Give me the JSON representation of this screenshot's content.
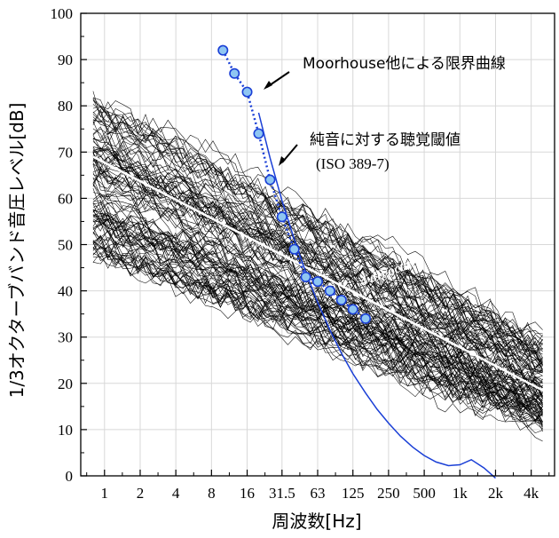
{
  "chart_data": {
    "type": "line",
    "xlabel": "周波数[Hz]",
    "ylabel": "1/3オクターブバンド音圧レベル[dB]",
    "x_scale": "log",
    "xlim": [
      0.63,
      6300
    ],
    "ylim": [
      0,
      100
    ],
    "grid": true,
    "y_ticks": [
      0,
      10,
      20,
      30,
      40,
      50,
      60,
      70,
      80,
      90,
      100
    ],
    "x_ticks": [
      {
        "value": 1,
        "label": "1"
      },
      {
        "value": 2,
        "label": "2"
      },
      {
        "value": 4,
        "label": "4"
      },
      {
        "value": 8,
        "label": "8"
      },
      {
        "value": 16,
        "label": "16"
      },
      {
        "value": 31.5,
        "label": "31.5"
      },
      {
        "value": 63,
        "label": "63"
      },
      {
        "value": 125,
        "label": "125"
      },
      {
        "value": 250,
        "label": "250"
      },
      {
        "value": 500,
        "label": "500"
      },
      {
        "value": 1000,
        "label": "1k"
      },
      {
        "value": 2000,
        "label": "2k"
      },
      {
        "value": 4000,
        "label": "4k"
      }
    ],
    "series": [
      {
        "name": "Moorhouse他による限界曲線",
        "style": "dotted-markers",
        "color": "#1a3fd6",
        "x": [
          10,
          12.5,
          16,
          20,
          25,
          31.5,
          40,
          50,
          63,
          80,
          100,
          125,
          160
        ],
        "y": [
          92,
          87,
          83,
          74,
          64,
          56,
          49,
          43,
          42,
          40,
          38,
          36,
          34
        ]
      },
      {
        "name": "純音に対する聴覚閾値",
        "note": "(ISO 389-7)",
        "style": "solid",
        "color": "#1a3fd6",
        "x": [
          20,
          25,
          31.5,
          40,
          50,
          63,
          80,
          100,
          125,
          160,
          200,
          250,
          315,
          400,
          500,
          630,
          800,
          1000,
          1250,
          1600,
          2000
        ],
        "y": [
          78.5,
          68.7,
          59.5,
          51.1,
          44.0,
          37.5,
          31.5,
          26.5,
          22.1,
          17.9,
          14.4,
          11.4,
          8.6,
          6.2,
          4.4,
          3.0,
          2.2,
          2.4,
          3.5,
          1.7,
          -0.5
        ]
      },
      {
        "name": "4 dB/octave",
        "style": "trend",
        "color": "#ffffff",
        "x": [
          0.8,
          5000
        ],
        "y": [
          69,
          18.5
        ]
      }
    ],
    "noise_curves": {
      "count": 110,
      "x_range": [
        0.8,
        5000
      ],
      "y_range_at_start": [
        47,
        81
      ],
      "y_range_at_end": [
        8,
        31
      ],
      "color": "#000000"
    },
    "annotations": [
      {
        "text": "Moorhouse他による限界曲線"
      },
      {
        "text": "純音に対する聴覚閾値"
      },
      {
        "text": "(ISO 389-7)"
      },
      {
        "text": "4 dB/octave"
      }
    ]
  }
}
